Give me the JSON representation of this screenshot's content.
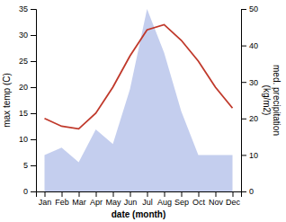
{
  "chart_data": {
    "type": "line",
    "categories": [
      "Jan",
      "Feb",
      "Mar",
      "Apr",
      "May",
      "Jun",
      "Jul",
      "Aug",
      "Sep",
      "Oct",
      "Nov",
      "Dec"
    ],
    "series": [
      {
        "type": "area",
        "axis": "y2",
        "color": "#b0bde8",
        "values": [
          10,
          12,
          8,
          17,
          13,
          28,
          50,
          38,
          22,
          10,
          10,
          10
        ]
      },
      {
        "type": "line",
        "color": "#c0392b",
        "values": [
          14,
          12.5,
          12,
          15,
          20,
          26,
          31,
          32,
          29,
          25,
          20,
          16
        ]
      }
    ],
    "xlabel": "date (month)",
    "ylabel": "max temp (C)",
    "y2label": "med. precipitation\n(kg/m2)",
    "ylim": [
      0,
      35
    ],
    "yticks": [
      0,
      5,
      10,
      15,
      20,
      25,
      30,
      35
    ],
    "y2lim": [
      0,
      50
    ],
    "y2ticks": [
      0,
      10,
      20,
      30,
      40,
      50
    ],
    "grid": false
  }
}
